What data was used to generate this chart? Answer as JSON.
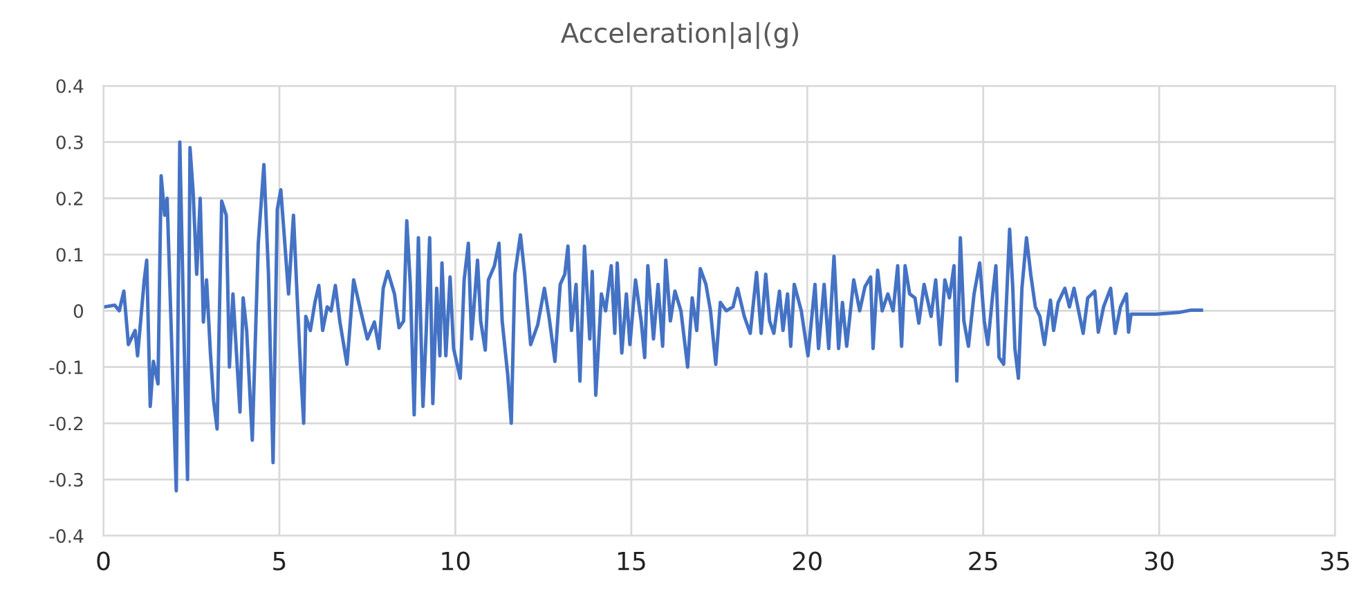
{
  "chart_data": {
    "type": "line",
    "title": "Acceleration|a|(g)",
    "xlim": [
      0,
      35
    ],
    "xticks": [
      0,
      5,
      10,
      15,
      20,
      25,
      30,
      35
    ],
    "ylim": [
      -0.4,
      0.4
    ],
    "yticks": [
      {
        "value": -0.4,
        "label": "-0.4"
      },
      {
        "value": -0.3,
        "label": "-0.3"
      },
      {
        "value": -0.2,
        "label": "-0.2"
      },
      {
        "value": -0.1,
        "label": "-0.1"
      },
      0,
      0.1,
      0.2,
      0.3,
      0.4
    ],
    "grid": true,
    "marker": "none",
    "line_style": "solid",
    "series": [
      {
        "color": "#4472c4",
        "x": [
          0.04,
          0.32,
          0.45,
          0.58,
          0.71,
          0.9,
          0.97,
          1.16,
          1.23,
          1.33,
          1.42,
          1.55,
          1.64,
          1.74,
          1.81,
          2.07,
          2.17,
          2.29,
          2.39,
          2.46,
          2.55,
          2.65,
          2.75,
          2.84,
          2.93,
          3.04,
          3.13,
          3.23,
          3.36,
          3.49,
          3.58,
          3.68,
          3.88,
          3.97,
          4.07,
          4.23,
          4.4,
          4.56,
          4.69,
          4.82,
          4.94,
          5.04,
          5.13,
          5.26,
          5.4,
          5.49,
          5.6,
          5.69,
          5.75,
          5.88,
          6.01,
          6.12,
          6.23,
          6.36,
          6.47,
          6.59,
          6.72,
          6.92,
          7.11,
          7.31,
          7.5,
          7.7,
          7.83,
          7.95,
          8.08,
          8.27,
          8.4,
          8.53,
          8.62,
          8.72,
          8.83,
          8.95,
          9.08,
          9.17,
          9.27,
          9.36,
          9.47,
          9.56,
          9.62,
          9.73,
          9.85,
          9.95,
          10.14,
          10.25,
          10.37,
          10.46,
          10.63,
          10.72,
          10.85,
          10.94,
          11.11,
          11.24,
          11.33,
          11.49,
          11.59,
          11.69,
          11.85,
          11.97,
          12.14,
          12.34,
          12.53,
          12.66,
          12.83,
          12.98,
          13.11,
          13.2,
          13.3,
          13.43,
          13.54,
          13.67,
          13.82,
          13.89,
          13.99,
          14.15,
          14.27,
          14.43,
          14.53,
          14.6,
          14.73,
          14.86,
          14.96,
          15.12,
          15.28,
          15.38,
          15.47,
          15.63,
          15.76,
          15.89,
          15.98,
          16.11,
          16.24,
          16.41,
          16.6,
          16.73,
          16.86,
          16.96,
          17.12,
          17.25,
          17.4,
          17.53,
          17.7,
          17.89,
          18.02,
          18.21,
          18.38,
          18.56,
          18.69,
          18.82,
          18.93,
          19.05,
          19.21,
          19.31,
          19.44,
          19.53,
          19.63,
          19.83,
          20.02,
          20.22,
          20.32,
          20.48,
          20.61,
          20.76,
          20.89,
          21.0,
          21.12,
          21.32,
          21.49,
          21.64,
          21.8,
          21.87,
          22.0,
          22.13,
          22.29,
          22.44,
          22.57,
          22.68,
          22.78,
          22.91,
          23.06,
          23.17,
          23.32,
          23.52,
          23.65,
          23.78,
          23.91,
          24.04,
          24.17,
          24.25,
          24.35,
          24.45,
          24.58,
          24.74,
          24.9,
          25.03,
          25.13,
          25.26,
          25.36,
          25.45,
          25.58,
          25.67,
          25.75,
          25.84,
          25.9,
          26.0,
          26.1,
          26.23,
          26.35,
          26.48,
          26.61,
          26.74,
          26.91,
          27.0,
          27.13,
          27.32,
          27.45,
          27.58,
          27.71,
          27.84,
          27.97,
          28.17,
          28.27,
          28.42,
          28.62,
          28.75,
          28.9,
          29.07,
          29.13,
          29.2,
          29.91,
          30.56,
          30.88,
          31.2
        ],
        "values": [
          0.007,
          0.01,
          0,
          0.035,
          -0.06,
          -0.035,
          -0.08,
          0.055,
          0.09,
          -0.17,
          -0.09,
          -0.13,
          0.24,
          0.17,
          0.2,
          -0.32,
          0.3,
          -0.05,
          -0.3,
          0.29,
          0.21,
          0.065,
          0.2,
          -0.02,
          0.055,
          -0.075,
          -0.16,
          -0.21,
          0.195,
          0.17,
          -0.1,
          0.03,
          -0.18,
          0.023,
          -0.035,
          -0.23,
          0.12,
          0.26,
          0.065,
          -0.27,
          0.18,
          0.215,
          0.14,
          0.03,
          0.17,
          0.045,
          -0.1,
          -0.2,
          -0.01,
          -0.035,
          0.015,
          0.045,
          -0.035,
          0.007,
          0,
          0.045,
          -0.02,
          -0.095,
          0.055,
          0,
          -0.05,
          -0.02,
          -0.067,
          0.04,
          0.07,
          0.03,
          -0.03,
          -0.018,
          0.16,
          0.047,
          -0.185,
          0.13,
          -0.17,
          -0.04,
          0.13,
          -0.165,
          0.04,
          -0.08,
          0.085,
          -0.08,
          0.06,
          -0.067,
          -0.12,
          0.055,
          0.12,
          -0.05,
          0.09,
          -0.018,
          -0.07,
          0.055,
          0.08,
          0.12,
          -0.018,
          -0.115,
          -0.2,
          0.065,
          0.135,
          0.065,
          -0.06,
          -0.025,
          0.04,
          -0.01,
          -0.09,
          0.047,
          0.065,
          0.115,
          -0.035,
          0.047,
          -0.125,
          0.115,
          -0.05,
          0.07,
          -0.15,
          0.03,
          0,
          0.08,
          -0.04,
          0.085,
          -0.075,
          0.03,
          -0.06,
          0.055,
          -0.018,
          -0.083,
          0.08,
          -0.05,
          0.047,
          -0.063,
          0.09,
          -0.018,
          0.035,
          0,
          -0.1,
          0.023,
          -0.035,
          0.075,
          0.047,
          0,
          -0.095,
          0.015,
          0,
          0.007,
          0.04,
          -0.01,
          -0.04,
          0.068,
          -0.04,
          0.065,
          -0.018,
          -0.04,
          0.035,
          -0.035,
          0.03,
          -0.063,
          0.047,
          0,
          -0.08,
          0.047,
          -0.067,
          0.047,
          -0.067,
          0.097,
          -0.067,
          0.015,
          -0.063,
          0.055,
          0,
          0.043,
          0.06,
          -0.067,
          0.072,
          0,
          0.03,
          0,
          0.08,
          -0.063,
          0.08,
          0.03,
          0.023,
          -0.022,
          0.047,
          -0.01,
          0.055,
          -0.06,
          0.055,
          0.023,
          0.08,
          -0.125,
          0.13,
          -0.018,
          -0.063,
          0.03,
          0.085,
          -0.018,
          -0.06,
          0.023,
          0.08,
          -0.083,
          -0.095,
          0.03,
          0.145,
          0.04,
          -0.067,
          -0.12,
          0.04,
          0.13,
          0.065,
          0.007,
          -0.01,
          -0.06,
          0.019,
          -0.035,
          0.015,
          0.04,
          0.007,
          0.04,
          0,
          -0.04,
          0.023,
          0.035,
          -0.038,
          0.007,
          0.04,
          -0.04,
          0.007,
          0.03,
          -0.038,
          -0.006,
          -0.006,
          -0.003,
          0.001,
          0.001
        ]
      }
    ]
  }
}
